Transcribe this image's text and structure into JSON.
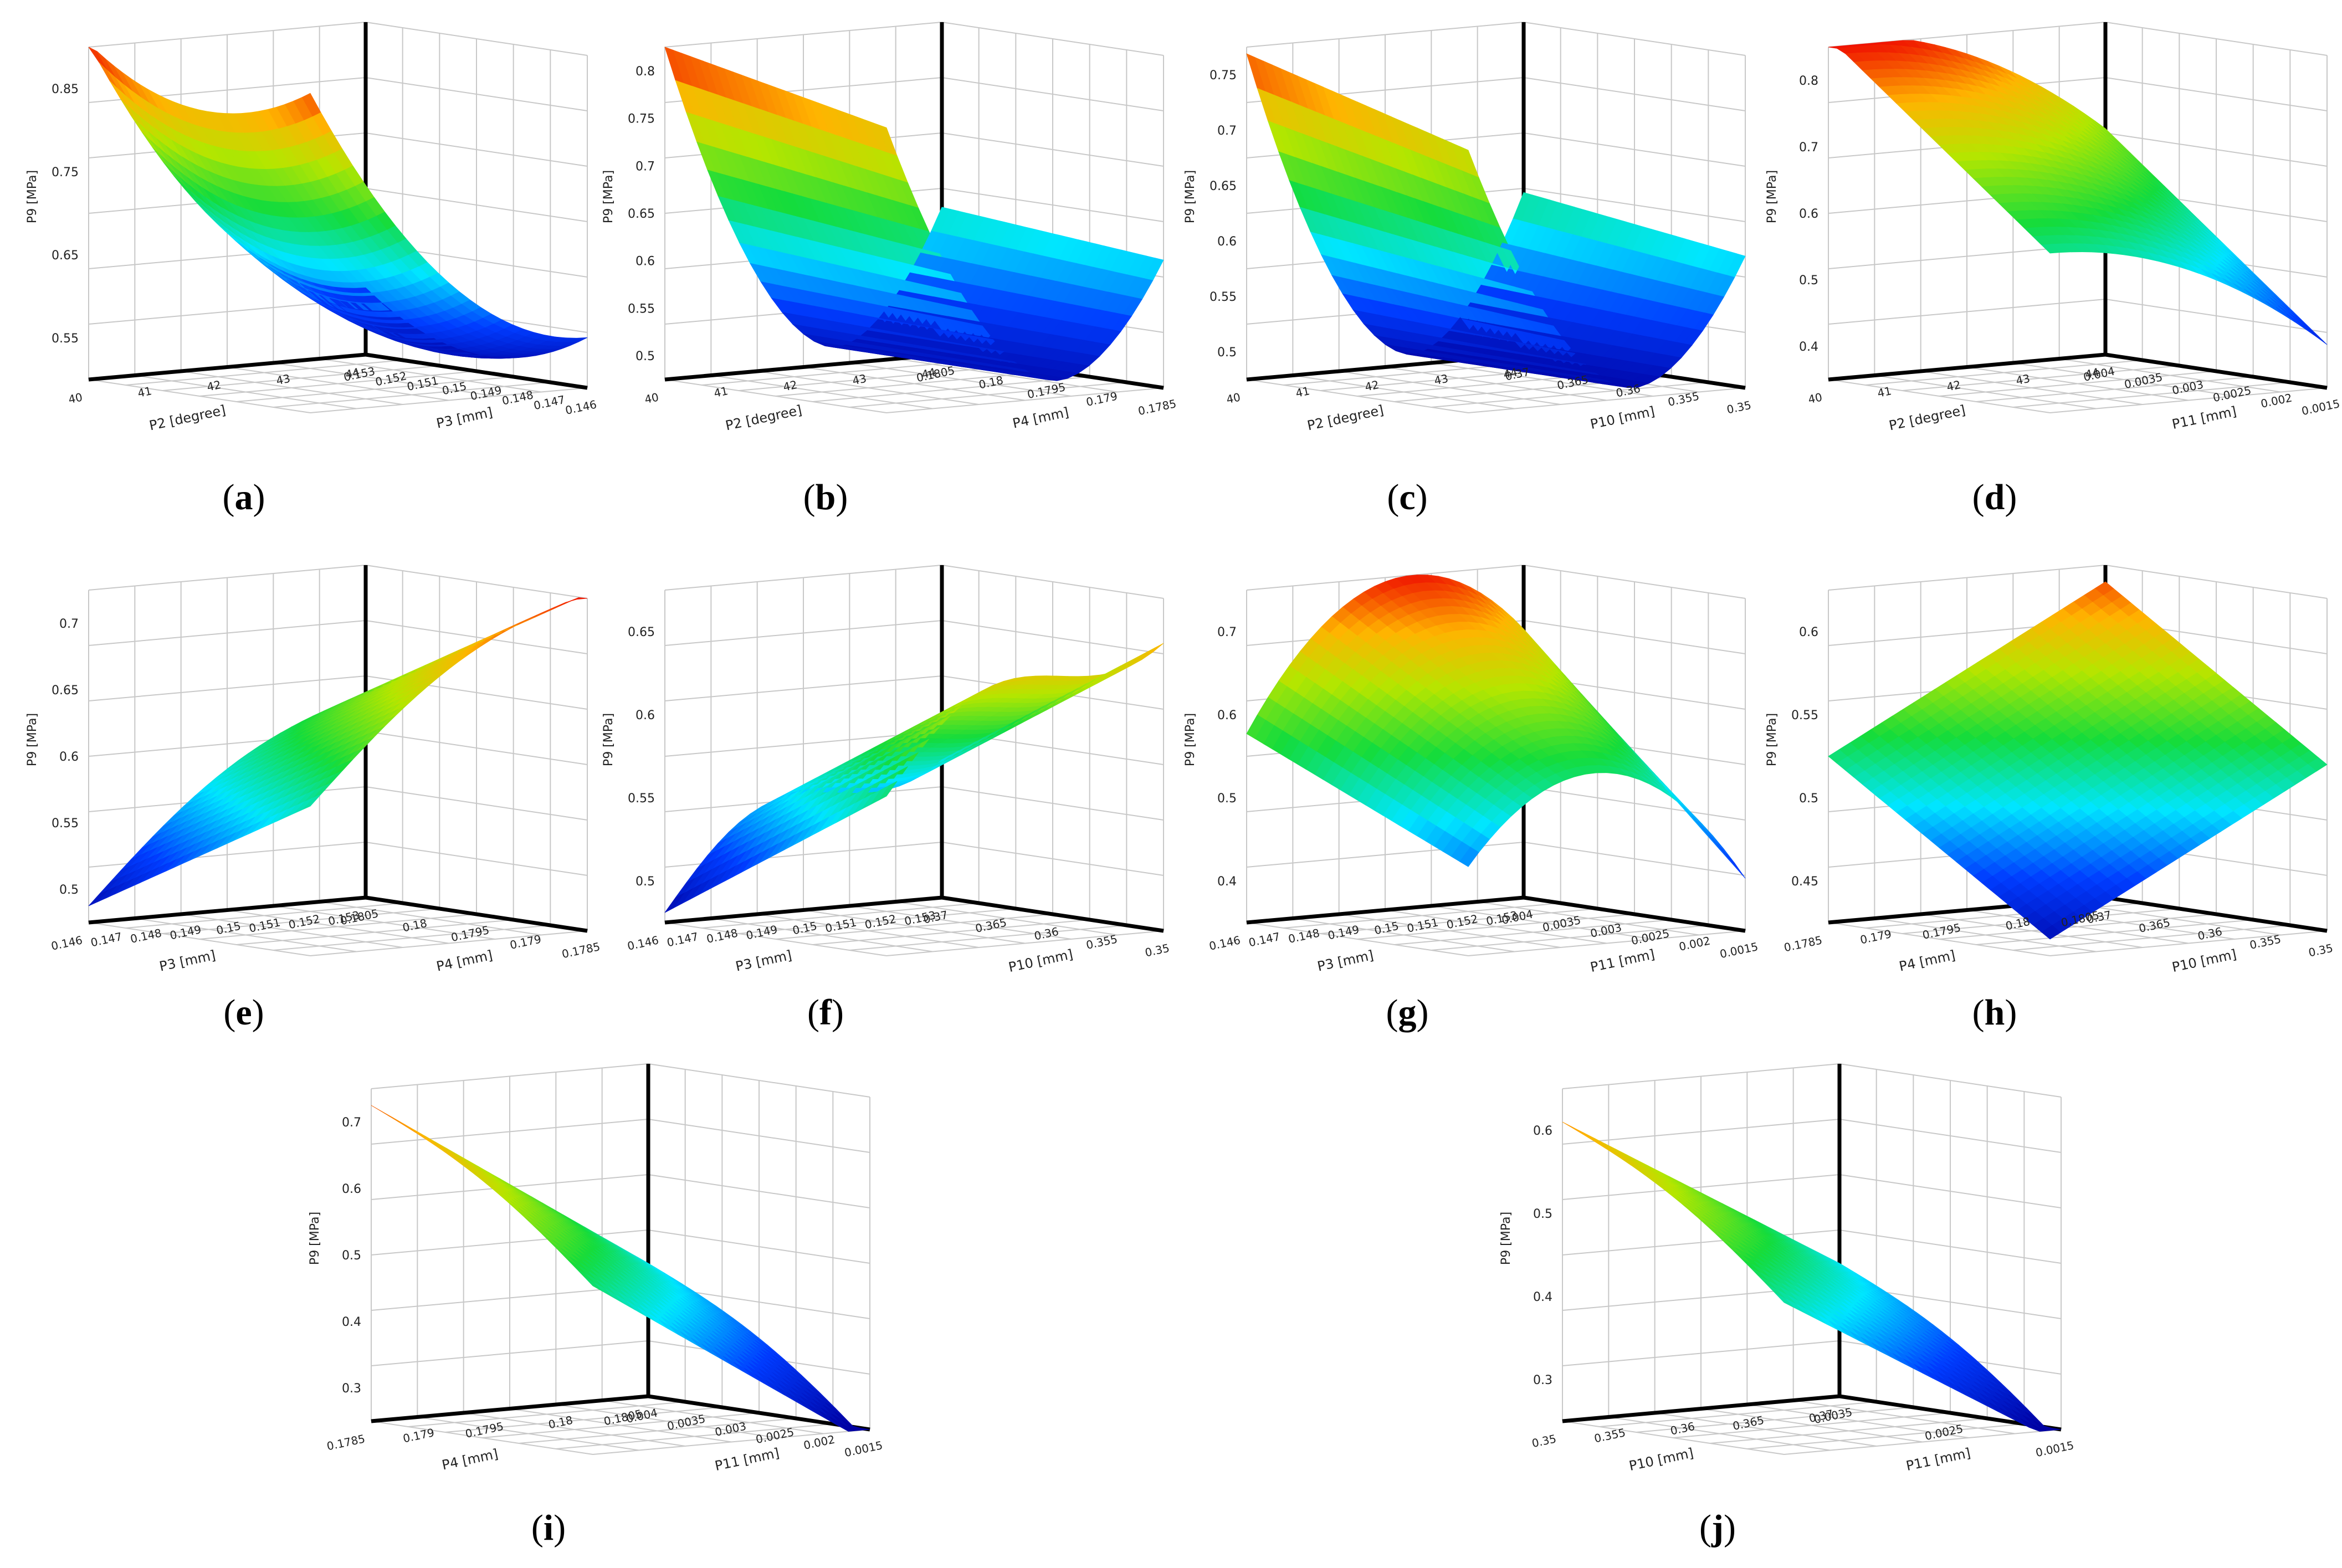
{
  "panels": [
    {
      "id": "a",
      "caption_letter": "a",
      "zlabel": "P9 [MPa]",
      "xlabel": "P2 [degree]",
      "ylabel": "P3 [mm]",
      "xticks": [
        "40",
        "41",
        "42",
        "43",
        "44"
      ],
      "yticks": [
        "0.153",
        "0.152",
        "0.151",
        "0.15",
        "0.149",
        "0.148",
        "0.147",
        "0.146"
      ],
      "zticks": [
        "0.55",
        "0.65",
        "0.75",
        "0.85"
      ],
      "zlim": [
        0.5,
        0.87
      ]
    },
    {
      "id": "b",
      "caption_letter": "b",
      "zlabel": "P9 [MPa]",
      "xlabel": "P2 [degree]",
      "ylabel": "P4 [mm]",
      "xticks": [
        "40",
        "41",
        "42",
        "43",
        "44"
      ],
      "yticks": [
        "0.1805",
        "0.18",
        "0.1795",
        "0.179",
        "0.1785"
      ],
      "zticks": [
        "0.5",
        "0.55",
        "0.6",
        "0.65",
        "0.7",
        "0.75",
        "0.8"
      ],
      "zlim": [
        0.48,
        0.81
      ]
    },
    {
      "id": "c",
      "caption_letter": "c",
      "zlabel": "P9 [MPa]",
      "xlabel": "P2 [degree]",
      "ylabel": "P10 [mm]",
      "xticks": [
        "40",
        "41",
        "42",
        "43",
        "44"
      ],
      "yticks": [
        "0.37",
        "0.365",
        "0.36",
        "0.355",
        "0.35"
      ],
      "zticks": [
        "0.5",
        "0.55",
        "0.6",
        "0.65",
        "0.7",
        "0.75"
      ],
      "zlim": [
        0.48,
        0.78
      ]
    },
    {
      "id": "d",
      "caption_letter": "d",
      "zlabel": "P9 [MPa]",
      "xlabel": "P2 [degree]",
      "ylabel": "P11 [mm]",
      "xticks": [
        "40",
        "41",
        "42",
        "43",
        "44"
      ],
      "yticks": [
        "0.004",
        "0.0035",
        "0.003",
        "0.0025",
        "0.002",
        "0.0015"
      ],
      "zticks": [
        "0.4",
        "0.5",
        "0.6",
        "0.7",
        "0.8"
      ],
      "zlim": [
        0.35,
        0.85
      ]
    },
    {
      "id": "e",
      "caption_letter": "e",
      "zlabel": "P9 [MPa]",
      "xlabel": "P3 [mm]",
      "ylabel": "P4 [mm]",
      "xticks": [
        "0.146",
        "0.147",
        "0.148",
        "0.149",
        "0.15",
        "0.151",
        "0.152",
        "0.153"
      ],
      "yticks": [
        "0.1805",
        "0.18",
        "0.1795",
        "0.179",
        "0.1785"
      ],
      "zticks": [
        "0.5",
        "0.55",
        "0.6",
        "0.65",
        "0.7"
      ],
      "zlim": [
        0.48,
        0.72
      ]
    },
    {
      "id": "f",
      "caption_letter": "f",
      "zlabel": "P9 [MPa]",
      "xlabel": "P3 [mm]",
      "ylabel": "P10 [mm]",
      "xticks": [
        "0.146",
        "0.147",
        "0.148",
        "0.149",
        "0.15",
        "0.151",
        "0.152",
        "0.153"
      ],
      "yticks": [
        "0.37",
        "0.365",
        "0.36",
        "0.355",
        "0.35"
      ],
      "zticks": [
        "0.5",
        "0.55",
        "0.6",
        "0.65"
      ],
      "zlim": [
        0.47,
        0.68
      ]
    },
    {
      "id": "g",
      "caption_letter": "g",
      "zlabel": "P9 [MPa]",
      "xlabel": "P3 [mm]",
      "ylabel": "P11 [mm]",
      "xticks": [
        "0.146",
        "0.147",
        "0.148",
        "0.149",
        "0.15",
        "0.151",
        "0.152",
        "0.153"
      ],
      "yticks": [
        "0.004",
        "0.0035",
        "0.003",
        "0.0025",
        "0.002",
        "0.0015"
      ],
      "zticks": [
        "0.4",
        "0.5",
        "0.6",
        "0.7"
      ],
      "zlim": [
        0.35,
        0.75
      ]
    },
    {
      "id": "h",
      "caption_letter": "h",
      "zlabel": "P9 [MPa]",
      "xlabel": "P4 [mm]",
      "ylabel": "P10 [mm]",
      "xticks": [
        "0.1785",
        "0.179",
        "0.1795",
        "0.18",
        "0.1805"
      ],
      "yticks": [
        "0.37",
        "0.365",
        "0.36",
        "0.355",
        "0.35"
      ],
      "zticks": [
        "0.45",
        "0.5",
        "0.55",
        "0.6"
      ],
      "zlim": [
        0.42,
        0.64
      ]
    },
    {
      "id": "i",
      "caption_letter": "i",
      "zlabel": "P9 [MPa]",
      "xlabel": "P4 [mm]",
      "ylabel": "P11 [mm]",
      "xticks": [
        "0.1785",
        "0.179",
        "0.1795",
        "0.18",
        "0.1805"
      ],
      "yticks": [
        "0.004",
        "0.0035",
        "0.003",
        "0.0025",
        "0.002",
        "0.0015"
      ],
      "zticks": [
        "0.3",
        "0.4",
        "0.5",
        "0.6",
        "0.7"
      ],
      "zlim": [
        0.3,
        0.72
      ]
    },
    {
      "id": "j",
      "caption_letter": "j",
      "zlabel": "P9 [MPa]",
      "xlabel": "P10 [mm]",
      "ylabel": "P11 [mm]",
      "xticks": [
        "0.35",
        "0.355",
        "0.36",
        "0.365",
        "0.37"
      ],
      "yticks": [
        "0.0035",
        "0.0025",
        "0.0015"
      ],
      "zticks": [
        "0.3",
        "0.4",
        "0.5",
        "0.6"
      ],
      "zlim": [
        0.3,
        0.66
      ]
    }
  ],
  "chart_data": [
    {
      "type": "surface",
      "panel": "a",
      "xlabel": "P2 [degree]",
      "ylabel": "P3 [mm]",
      "zlabel": "P9 [MPa]",
      "zlim": [
        0.5,
        0.87
      ]
    },
    {
      "type": "surface",
      "panel": "b",
      "xlabel": "P2 [degree]",
      "ylabel": "P4 [mm]",
      "zlabel": "P9 [MPa]",
      "zlim": [
        0.48,
        0.81
      ]
    },
    {
      "type": "surface",
      "panel": "c",
      "xlabel": "P2 [degree]",
      "ylabel": "P10 [mm]",
      "zlabel": "P9 [MPa]",
      "zlim": [
        0.48,
        0.78
      ]
    },
    {
      "type": "surface",
      "panel": "d",
      "xlabel": "P2 [degree]",
      "ylabel": "P11 [mm]",
      "zlabel": "P9 [MPa]",
      "zlim": [
        0.35,
        0.85
      ]
    },
    {
      "type": "surface",
      "panel": "e",
      "xlabel": "P3 [mm]",
      "ylabel": "P4 [mm]",
      "zlabel": "P9 [MPa]",
      "zlim": [
        0.48,
        0.72
      ]
    },
    {
      "type": "surface",
      "panel": "f",
      "xlabel": "P3 [mm]",
      "ylabel": "P10 [mm]",
      "zlabel": "P9 [MPa]",
      "zlim": [
        0.47,
        0.68
      ]
    },
    {
      "type": "surface",
      "panel": "g",
      "xlabel": "P3 [mm]",
      "ylabel": "P11 [mm]",
      "zlabel": "P9 [MPa]",
      "zlim": [
        0.35,
        0.75
      ]
    },
    {
      "type": "surface",
      "panel": "h",
      "xlabel": "P4 [mm]",
      "ylabel": "P10 [mm]",
      "zlabel": "P9 [MPa]",
      "zlim": [
        0.42,
        0.64
      ]
    },
    {
      "type": "surface",
      "panel": "i",
      "xlabel": "P4 [mm]",
      "ylabel": "P11 [mm]",
      "zlabel": "P9 [MPa]",
      "zlim": [
        0.3,
        0.72
      ]
    },
    {
      "type": "surface",
      "panel": "j",
      "xlabel": "P10 [mm]",
      "ylabel": "P11 [mm]",
      "zlabel": "P9 [MPa]",
      "zlim": [
        0.3,
        0.66
      ]
    }
  ],
  "colors": {
    "axis": "#000000",
    "grid": "#c8c8c8",
    "text": "#222222"
  }
}
